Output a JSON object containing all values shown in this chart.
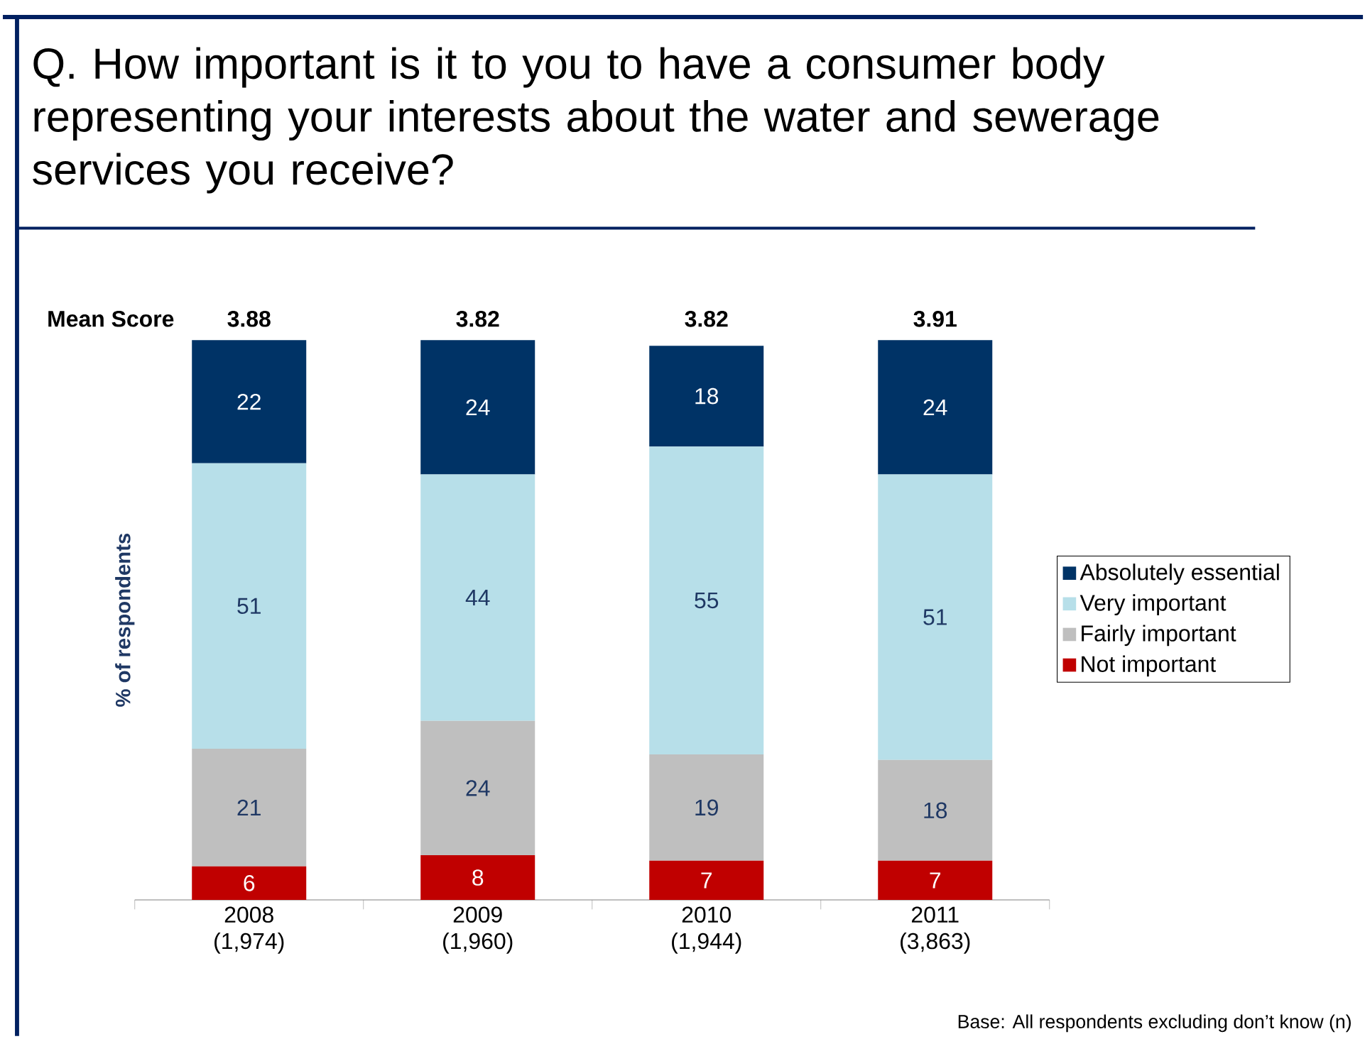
{
  "chart_data": {
    "type": "bar",
    "stacked": true,
    "title": "Q. How important is it to you to have a consumer body representing your interests about the water and sewerage services you receive?",
    "ylabel": "% of respondents",
    "categories": [
      "2008 (1,974)",
      "2009 (1,960)",
      "2010 (1,944)",
      "2011 (3,863)"
    ],
    "series": [
      {
        "name": "Not important",
        "color": "#c00000",
        "values": [
          6,
          8,
          7,
          7
        ]
      },
      {
        "name": "Fairly important",
        "color": "#bfbfbf",
        "values": [
          21,
          24,
          19,
          18
        ]
      },
      {
        "name": "Very important",
        "color": "#b7dfe9",
        "values": [
          51,
          44,
          55,
          51
        ]
      },
      {
        "name": "Absolutely essential",
        "color": "#003366",
        "values": [
          22,
          24,
          18,
          24
        ]
      }
    ],
    "data_labels": true,
    "legend": "right",
    "annotations": [
      "Mean Score",
      "3.88",
      "3.82",
      "3.82",
      "3.91",
      "Base: All respondents excluding don’t know (n)"
    ]
  }
}
